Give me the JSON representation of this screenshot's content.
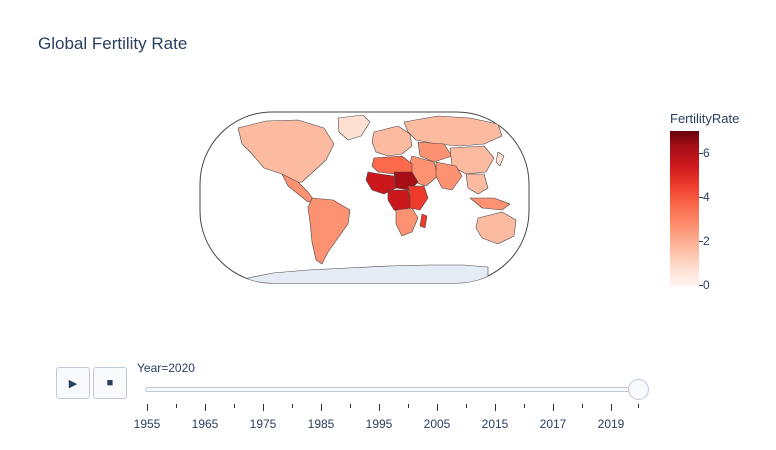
{
  "title": "Global Fertility Rate",
  "map": {
    "projection": "natural earth",
    "ocean_color": "#ffffff",
    "outline_color": "#444444",
    "antarctica_color": "#e5ecf6",
    "regions": [
      {
        "name": "North America",
        "value": 1.7
      },
      {
        "name": "Greenland",
        "value": 1.8
      },
      {
        "name": "Central America",
        "value": 2.1
      },
      {
        "name": "South America",
        "value": 1.9
      },
      {
        "name": "Europe",
        "value": 1.5
      },
      {
        "name": "Russia",
        "value": 1.5
      },
      {
        "name": "Middle East",
        "value": 2.6
      },
      {
        "name": "Central Asia",
        "value": 2.8
      },
      {
        "name": "South Asia",
        "value": 2.2
      },
      {
        "name": "China",
        "value": 1.7
      },
      {
        "name": "Southeast Asia",
        "value": 2.0
      },
      {
        "name": "North Africa",
        "value": 3.0
      },
      {
        "name": "West Africa",
        "value": 5.2
      },
      {
        "name": "Sahel",
        "value": 6.1
      },
      {
        "name": "Central Africa",
        "value": 5.8
      },
      {
        "name": "East Africa",
        "value": 4.3
      },
      {
        "name": "Southern Africa",
        "value": 2.4
      },
      {
        "name": "Madagascar",
        "value": 4.0
      },
      {
        "name": "Australia",
        "value": 1.6
      },
      {
        "name": "Indonesia",
        "value": 2.2
      },
      {
        "name": "Japan",
        "value": 1.3
      }
    ]
  },
  "colorbar": {
    "title": "FertilityRate",
    "colorscale": [
      "#fff5f0",
      "#fee0d2",
      "#fcbba1",
      "#fc9272",
      "#fb6a4a",
      "#ef3b2c",
      "#cb181d",
      "#a50f15",
      "#67000d"
    ],
    "range": [
      0,
      7
    ],
    "ticks": [
      "6",
      "4",
      "2",
      "0"
    ]
  },
  "controls": {
    "play_icon": "▶",
    "stop_icon": "■"
  },
  "slider": {
    "label": "Year=2020",
    "current": 2020,
    "range": [
      1955,
      2020
    ],
    "tick_labels": [
      "1955",
      "1965",
      "1975",
      "1985",
      "1995",
      "2005",
      "2015",
      "2017",
      "2019"
    ]
  }
}
